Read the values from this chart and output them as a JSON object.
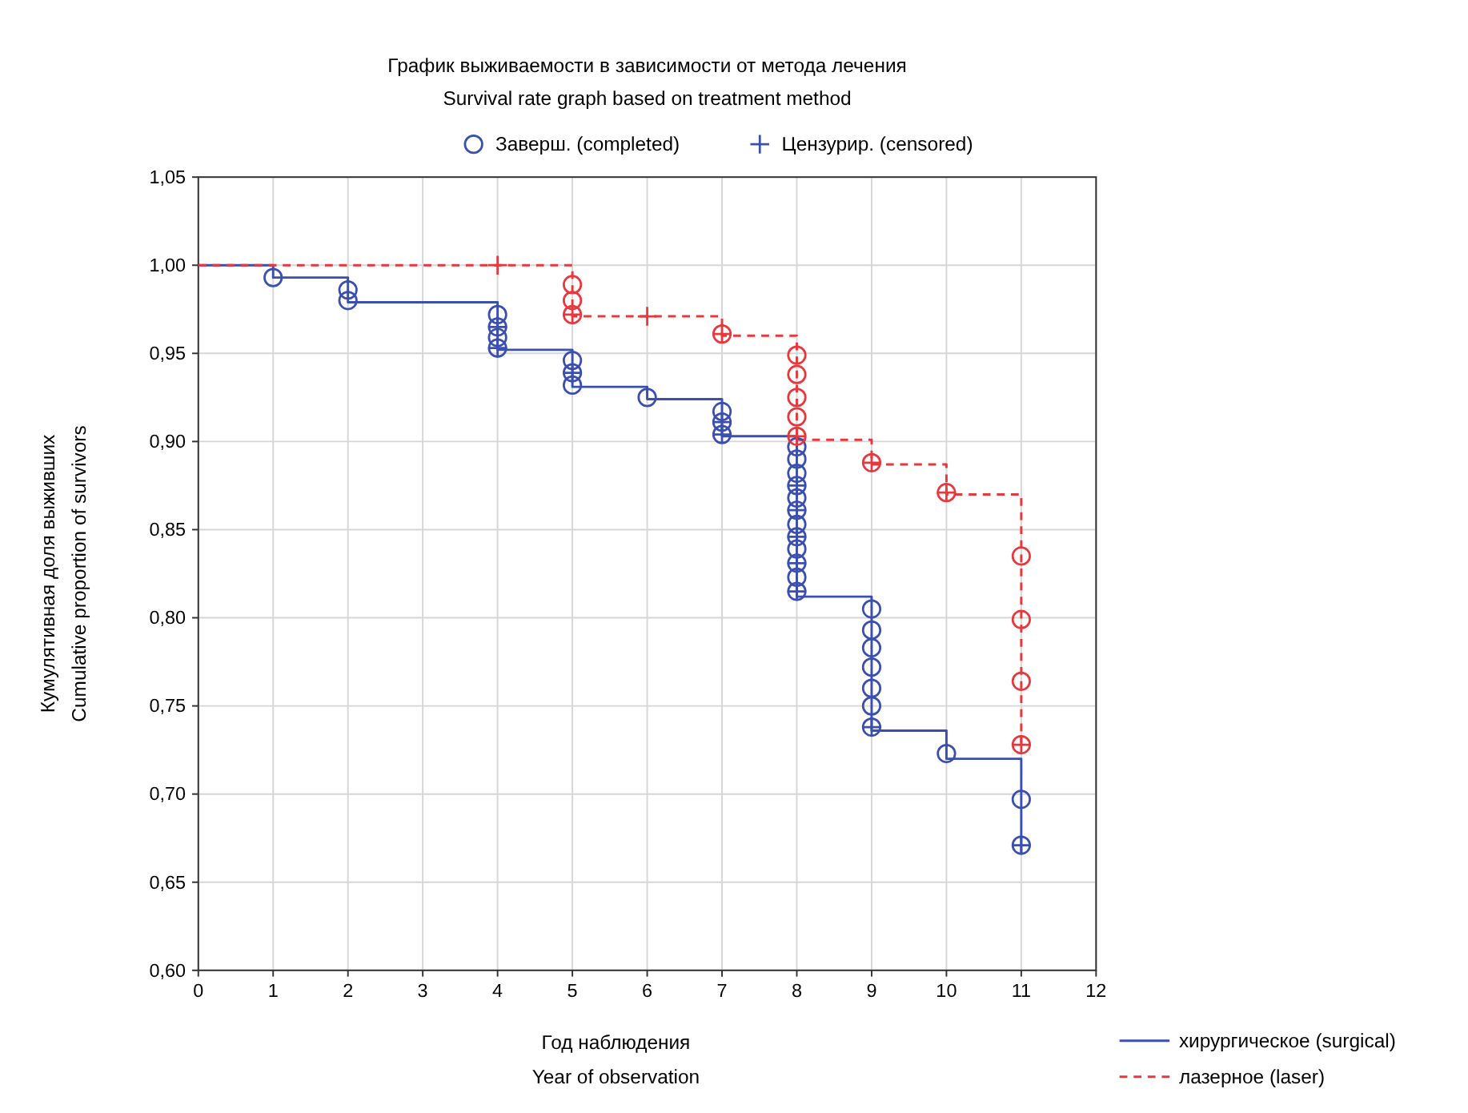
{
  "chart_data": {
    "type": "step",
    "title": "График выживаемости в зависимости от метода лечения",
    "subtitle": "Survival rate graph based on treatment method",
    "xlabel": "Год наблюдения\nYear of observation",
    "ylabel": "Кумулятивная доля выживших\nCumulative proportion of survivors",
    "xlim": [
      0,
      12
    ],
    "xticks": [
      0,
      1,
      2,
      3,
      4,
      5,
      6,
      7,
      8,
      9,
      10,
      11,
      12
    ],
    "ylim": [
      0.6,
      1.05
    ],
    "yticks": [
      {
        "value": 0.6,
        "label": "0,60"
      },
      {
        "value": 0.65,
        "label": "0,65"
      },
      {
        "value": 0.7,
        "label": "0,70"
      },
      {
        "value": 0.75,
        "label": "0,75"
      },
      {
        "value": 0.8,
        "label": "0,80"
      },
      {
        "value": 0.85,
        "label": "0,85"
      },
      {
        "value": 0.9,
        "label": "0,90"
      },
      {
        "value": 0.95,
        "label": "0,95"
      },
      {
        "value": 1.0,
        "label": "1,00"
      },
      {
        "value": 1.05,
        "label": "1,05"
      }
    ],
    "grid": true,
    "legend": "bottom right",
    "series": [
      {
        "name": "хирургическое (surgical)",
        "color": "#3b4fb0",
        "line_style": "solid",
        "x": [
          0,
          1,
          2,
          4,
          5,
          6,
          7,
          8,
          9,
          10,
          11
        ],
        "values": [
          1.0,
          0.993,
          0.979,
          0.952,
          0.931,
          0.924,
          0.903,
          0.812,
          0.736,
          0.72,
          0.666
        ]
      },
      {
        "name": "лазерное (laser)",
        "color": "#e8383d",
        "line_style": "dashed",
        "x": [
          0,
          5,
          7,
          8,
          9,
          10,
          11
        ],
        "values": [
          1.0,
          0.971,
          0.96,
          0.901,
          0.887,
          0.87,
          0.724
        ]
      },
      {
        "type": "scatter",
        "name": "Заверш. (completed)",
        "color": "#3b4fb0",
        "marker": "circle",
        "x": [
          1,
          2,
          2,
          4,
          4,
          4,
          4,
          5,
          5,
          5,
          6,
          7,
          7,
          7,
          8,
          8,
          8,
          8,
          8,
          8,
          8,
          8,
          8,
          8,
          8,
          8,
          9,
          9,
          9,
          9,
          9,
          9,
          9,
          10,
          11,
          11
        ],
        "values": [
          0.993,
          0.986,
          0.98,
          0.972,
          0.965,
          0.959,
          0.953,
          0.946,
          0.939,
          0.932,
          0.925,
          0.917,
          0.911,
          0.904,
          0.897,
          0.89,
          0.882,
          0.875,
          0.868,
          0.861,
          0.853,
          0.846,
          0.839,
          0.831,
          0.823,
          0.815,
          0.805,
          0.793,
          0.783,
          0.772,
          0.76,
          0.75,
          0.738,
          0.723,
          0.697,
          0.671
        ]
      },
      {
        "type": "scatter",
        "color": "#e8383d",
        "marker": "circle",
        "x": [
          5,
          5,
          5,
          7,
          8,
          8,
          8,
          8,
          8,
          9,
          10,
          11,
          11,
          11,
          11
        ],
        "values": [
          0.989,
          0.98,
          0.972,
          0.961,
          0.949,
          0.938,
          0.925,
          0.914,
          0.903,
          0.888,
          0.871,
          0.835,
          0.799,
          0.764,
          0.728
        ]
      },
      {
        "type": "scatter",
        "name": "Цензурир. (censored)",
        "color": "#3b4fb0",
        "marker": "cross",
        "x": [
          4,
          4,
          5,
          7,
          7,
          8,
          8,
          8,
          8,
          8,
          9,
          11
        ],
        "values": [
          0.965,
          0.953,
          0.939,
          0.911,
          0.904,
          0.875,
          0.861,
          0.846,
          0.831,
          0.815,
          0.738,
          0.671
        ]
      },
      {
        "type": "scatter",
        "color": "#e8383d",
        "marker": "cross",
        "x": [
          4,
          6,
          5,
          7,
          8,
          9,
          10,
          11
        ],
        "values": [
          1.0,
          0.971,
          0.972,
          0.961,
          0.903,
          0.888,
          0.871,
          0.728
        ]
      }
    ]
  }
}
